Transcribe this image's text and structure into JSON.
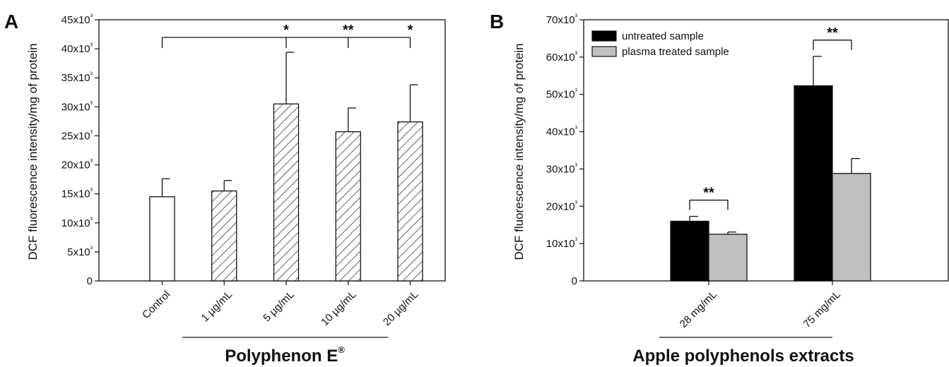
{
  "chart_data": [
    {
      "type": "bar",
      "panel_label": "A",
      "ylabel": "DCF fluorescence intensity/mg of protein",
      "y_tick_labels": [
        "0",
        "5x10³",
        "10x10³",
        "15x10³",
        "20x10³",
        "25x10³",
        "30x10³",
        "35x10³",
        "40x10³",
        "45x10³"
      ],
      "y_tick_values": [
        0,
        5000,
        10000,
        15000,
        20000,
        25000,
        30000,
        35000,
        40000,
        45000
      ],
      "ylim": [
        0,
        45000
      ],
      "categories": [
        "Control",
        "1 µg/mL",
        "5 µg/mL",
        "10 µg/mL",
        "20 µg/mL"
      ],
      "values": [
        14500,
        15500,
        30500,
        25700,
        27400
      ],
      "errors": [
        3100,
        1800,
        8900,
        4100,
        6400
      ],
      "fills": [
        "open",
        "hatched",
        "hatched",
        "hatched",
        "hatched"
      ],
      "group_label": "Polyphenon E",
      "group_label_sup": "®",
      "significance": {
        "from_category": "Control",
        "marks": [
          {
            "category": "5 µg/mL",
            "label": "*"
          },
          {
            "category": "10 µg/mL",
            "label": "**"
          },
          {
            "category": "20 µg/mL",
            "label": "*"
          }
        ]
      }
    },
    {
      "type": "bar",
      "panel_label": "B",
      "ylabel": "DCF fluorescence intensity/mg of protein",
      "y_tick_labels": [
        "0",
        "10x10³",
        "20x10³",
        "30x10³",
        "40x10³",
        "50x10³",
        "60x10³",
        "70x10³"
      ],
      "y_tick_values": [
        0,
        10000,
        20000,
        30000,
        40000,
        50000,
        60000,
        70000
      ],
      "ylim": [
        0,
        70000
      ],
      "categories": [
        "28 mg/mL",
        "75 mg/mL"
      ],
      "series": [
        {
          "name": "untreated sample",
          "color": "#000000",
          "values": [
            16000,
            52300
          ],
          "errors": [
            1300,
            7900
          ]
        },
        {
          "name": "plasma treated sample",
          "color": "#c0c0c0",
          "values": [
            12500,
            28800
          ],
          "errors": [
            600,
            4000
          ]
        }
      ],
      "legend_position": "top-left",
      "group_label": "Apple polyphenols extracts",
      "significance": [
        {
          "category": "28 mg/mL",
          "label": "**"
        },
        {
          "category": "75 mg/mL",
          "label": "**"
        }
      ]
    }
  ]
}
